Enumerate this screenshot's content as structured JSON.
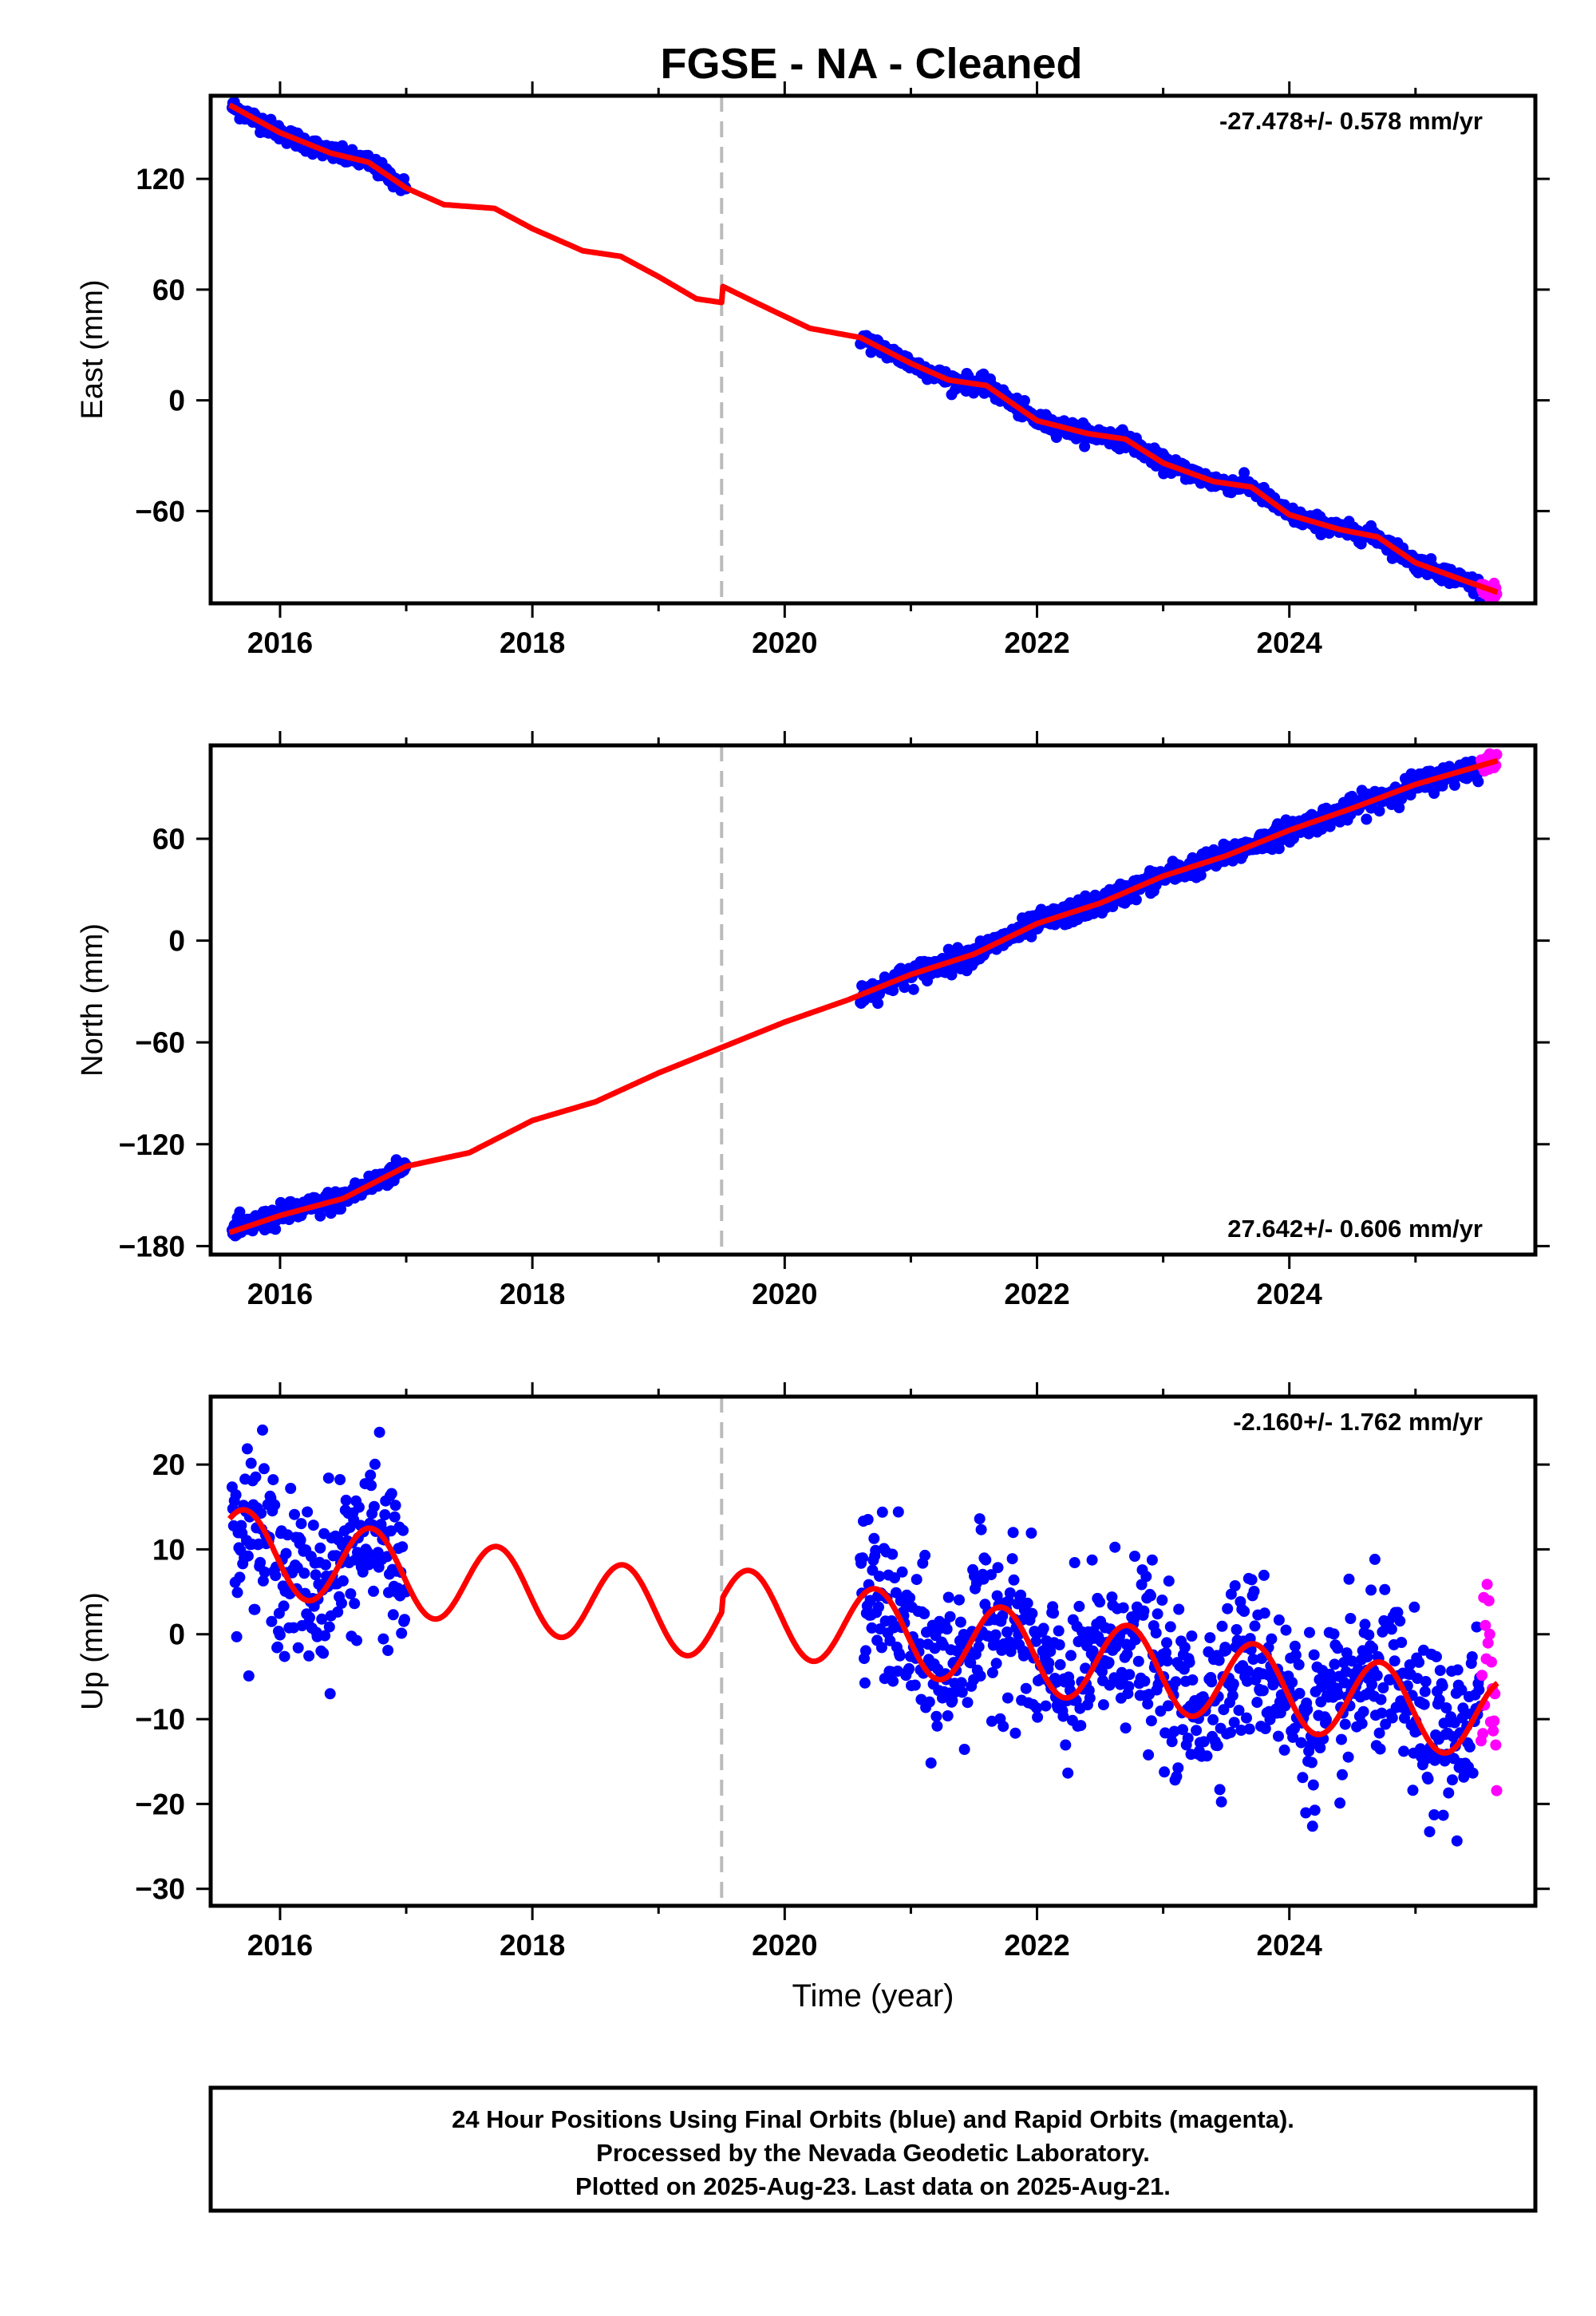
{
  "title": "FGSE  - NA - Cleaned",
  "footer": {
    "lines": [
      "24 Hour Positions Using Final Orbits (blue) and Rapid Orbits (magenta).",
      "Processed by the Nevada Geodetic Laboratory.",
      "Plotted on 2025-Aug-23. Last data on 2025-Aug-21."
    ]
  },
  "colors": {
    "final": "#0000ff",
    "rapid": "#ff00ff",
    "model": "#ff0000",
    "offset_line": "#bbbbbb"
  },
  "chart_data": [
    {
      "type": "scatter",
      "name": "east",
      "ylabel": "East (mm)",
      "xlabel": "",
      "rate": "-27.478+/- 0.578 mm/yr",
      "rate_position": "top-right",
      "xlim": [
        2015.45,
        2025.95
      ],
      "ylim": [
        -110,
        165
      ],
      "xticks": [
        2016,
        2018,
        2020,
        2022,
        2024
      ],
      "yticks": [
        -60,
        0,
        60,
        120
      ],
      "offset_epoch": 2019.5,
      "model_knots": [
        [
          2015.6,
          160
        ],
        [
          2016.0,
          145
        ],
        [
          2016.4,
          134
        ],
        [
          2016.7,
          129
        ],
        [
          2017.0,
          115
        ],
        [
          2017.3,
          106
        ],
        [
          2017.7,
          104
        ],
        [
          2018.0,
          93
        ],
        [
          2018.4,
          81
        ],
        [
          2018.7,
          78
        ],
        [
          2019.0,
          67
        ],
        [
          2019.3,
          55
        ],
        [
          2019.5,
          53
        ],
        [
          2019.5,
          62
        ],
        [
          2019.8,
          52
        ],
        [
          2020.2,
          39
        ],
        [
          2020.6,
          34
        ],
        [
          2021.0,
          20
        ],
        [
          2021.3,
          11
        ],
        [
          2021.6,
          8
        ],
        [
          2022.0,
          -11
        ],
        [
          2022.4,
          -18
        ],
        [
          2022.7,
          -21
        ],
        [
          2023.0,
          -34
        ],
        [
          2023.4,
          -44
        ],
        [
          2023.7,
          -47
        ],
        [
          2024.0,
          -62
        ],
        [
          2024.4,
          -70
        ],
        [
          2024.7,
          -74
        ],
        [
          2025.0,
          -88
        ],
        [
          2025.4,
          -98
        ],
        [
          2025.65,
          -104
        ]
      ],
      "final_segments": [
        [
          2015.62,
          2017.0
        ],
        [
          2020.6,
          2025.52
        ]
      ],
      "rapid_span": [
        2025.52,
        2025.65
      ],
      "scatter_sigma": 2.2,
      "scatter_seasonal": 0
    },
    {
      "type": "scatter",
      "name": "north",
      "ylabel": "North (mm)",
      "xlabel": "",
      "rate": "27.642+/- 0.606 mm/yr",
      "rate_position": "bottom-right",
      "xlim": [
        2015.45,
        2025.95
      ],
      "ylim": [
        -185,
        115
      ],
      "xticks": [
        2016,
        2018,
        2020,
        2022,
        2024
      ],
      "yticks": [
        -180,
        -120,
        -60,
        0,
        60
      ],
      "offset_epoch": 2019.5,
      "model_knots": [
        [
          2015.6,
          -172
        ],
        [
          2016.0,
          -162
        ],
        [
          2016.5,
          -152
        ],
        [
          2017.0,
          -133
        ],
        [
          2017.5,
          -125
        ],
        [
          2018.0,
          -106
        ],
        [
          2018.5,
          -95
        ],
        [
          2019.0,
          -78
        ],
        [
          2019.5,
          -63
        ],
        [
          2020.0,
          -48
        ],
        [
          2020.5,
          -35
        ],
        [
          2021.0,
          -20
        ],
        [
          2021.5,
          -8
        ],
        [
          2022.0,
          10
        ],
        [
          2022.5,
          22
        ],
        [
          2023.0,
          38
        ],
        [
          2023.5,
          50
        ],
        [
          2024.0,
          65
        ],
        [
          2024.5,
          78
        ],
        [
          2025.0,
          92
        ],
        [
          2025.65,
          106
        ]
      ],
      "final_segments": [
        [
          2015.62,
          2017.0
        ],
        [
          2020.6,
          2025.52
        ]
      ],
      "rapid_span": [
        2025.52,
        2025.65
      ],
      "scatter_sigma": 3.2,
      "scatter_seasonal": 0
    },
    {
      "type": "scatter",
      "name": "up",
      "ylabel": "Up (mm)",
      "xlabel": "Time (year)",
      "rate": "-2.160+/- 1.762 mm/yr",
      "rate_position": "top-right",
      "xlim": [
        2015.45,
        2025.95
      ],
      "ylim": [
        -32,
        28
      ],
      "xticks": [
        2016,
        2018,
        2020,
        2022,
        2024
      ],
      "yticks": [
        -30,
        -20,
        -10,
        0,
        10,
        20
      ],
      "offset_epoch": 2019.5,
      "model_sine": {
        "intercept": 7.5,
        "trend": -2.16,
        "t0": 2017.5,
        "amplitude": 4.8,
        "peak_phase": 0.72,
        "offset_at_2019_5": 1.5
      },
      "final_segments": [
        [
          2015.62,
          2017.0
        ],
        [
          2020.6,
          2022.6
        ],
        [
          2022.6,
          2025.52
        ]
      ],
      "rapid_span": [
        2025.52,
        2025.65
      ],
      "scatter_sigma": 4.8,
      "scatter_seasonal": 4.5
    }
  ]
}
